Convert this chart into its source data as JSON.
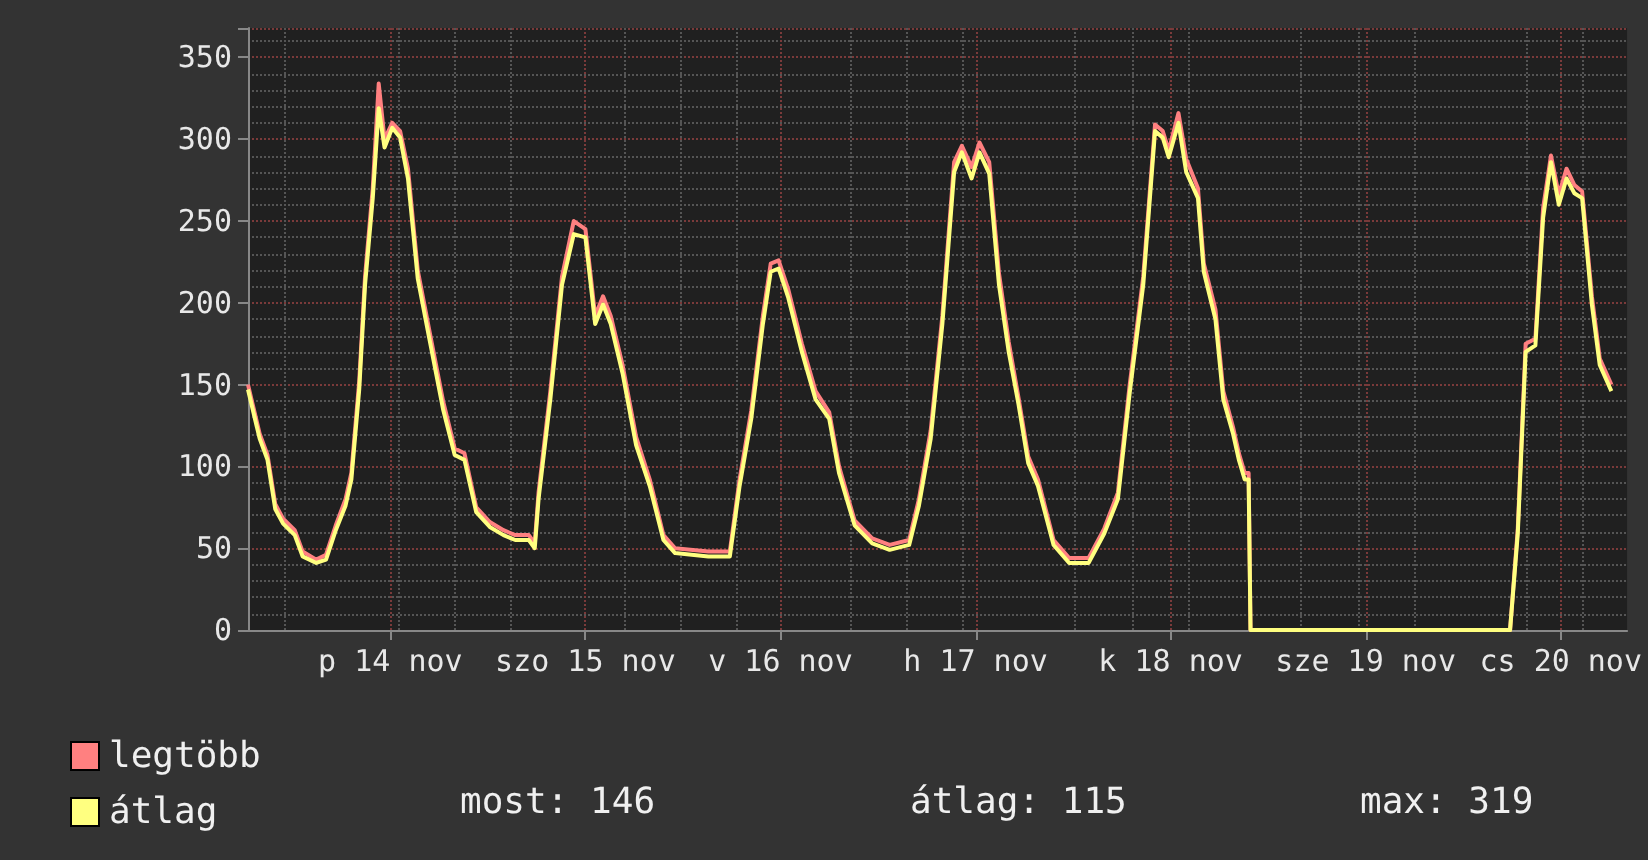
{
  "chart_data": {
    "type": "line",
    "x": [
      "--11-13T18:29",
      "--11-13T19:55",
      "--11-13T20:53",
      "--11-13T21:50",
      "--11-13T22:48",
      "--11-14T00:14",
      "--11-14T01:12",
      "--11-14T02:53",
      "--11-14T04:05",
      "--11-14T05:17",
      "--11-14T06:29",
      "--11-14T07:12",
      "--11-14T08:10",
      "--11-14T08:53",
      "--11-14T09:50",
      "--11-14T10:34",
      "--11-14T11:17",
      "--11-14T12:14",
      "--11-14T13:12",
      "--11-14T14:10",
      "--11-14T15:22",
      "--11-14T16:48",
      "--11-14T18:29",
      "--11-14T19:55",
      "--11-14T21:07",
      "--11-14T22:34",
      "--11-15T00:14",
      "--11-15T01:55",
      "--11-15T03:22",
      "--11-15T05:02",
      "--11-15T05:46",
      "--11-15T06:14",
      "--11-15T07:41",
      "--11-15T09:07",
      "--11-15T10:34",
      "--11-15T12:00",
      "--11-15T13:12",
      "--11-15T14:10",
      "--11-15T15:07",
      "--11-15T16:34",
      "--11-15T18:14",
      "--11-15T19:55",
      "--11-15T21:36",
      "--11-15T23:02",
      "--11-16T03:07",
      "--11-16T05:46",
      "--11-16T06:58",
      "--11-16T08:24",
      "--11-16T09:50",
      "--11-16T10:48",
      "--11-16T11:46",
      "--11-16T12:58",
      "--11-16T14:38",
      "--11-16T16:19",
      "--11-16T18:00",
      "--11-16T19:12",
      "--11-16T21:07",
      "--11-16T23:17",
      "--11-17T01:26",
      "--11-17T03:50",
      "--11-17T05:02",
      "--11-17T06:29",
      "--11-17T07:55",
      "--11-17T09:22",
      "--11-17T10:19",
      "--11-17T11:31",
      "--11-17T12:29",
      "--11-17T13:41",
      "--11-17T14:53",
      "--11-17T16:05",
      "--11-17T17:17",
      "--11-17T18:29",
      "--11-17T19:41",
      "--11-17T21:36",
      "--11-17T23:31",
      "--11-18T01:55",
      "--11-18T03:50",
      "--11-18T05:31",
      "--11-18T06:58",
      "--11-18T08:38",
      "--11-18T10:05",
      "--11-18T11:02",
      "--11-18T11:46",
      "--11-18T12:58",
      "--11-18T13:55",
      "--11-18T15:22",
      "--11-18T16:05",
      "--11-18T17:31",
      "--11-18T18:29",
      "--11-18T19:41",
      "--11-18T20:24",
      "--11-18T21:07",
      "--11-18T21:36",
      "--11-18T21:50",
      "--11-20T05:46",
      "--11-20T06:43",
      "--11-20T07:41",
      "--11-20T08:53",
      "--11-20T09:50",
      "--11-20T10:48",
      "--11-20T11:46",
      "--11-20T12:43",
      "--11-20T13:41",
      "--11-20T14:38",
      "--11-20T15:50",
      "--11-20T16:48",
      "--11-20T18:14"
    ],
    "series": [
      {
        "name": "legtöbb",
        "color": "#ff8080",
        "values": [
          150,
          120,
          107,
          77,
          68,
          61,
          48,
          43,
          46,
          64,
          80,
          96,
          152,
          216,
          270,
          334,
          300,
          310,
          305,
          282,
          220,
          183,
          140,
          111,
          108,
          75,
          66,
          61,
          58,
          58,
          53,
          84,
          146,
          216,
          250,
          245,
          192,
          204,
          192,
          162,
          118,
          92,
          58,
          50,
          48,
          48,
          92,
          134,
          192,
          224,
          226,
          208,
          175,
          146,
          133,
          100,
          67,
          56,
          52,
          55,
          80,
          122,
          192,
          286,
          296,
          283,
          298,
          286,
          218,
          176,
          142,
          106,
          92,
          55,
          44,
          44,
          62,
          84,
          150,
          216,
          309,
          305,
          293,
          316,
          288,
          270,
          224,
          196,
          146,
          124,
          108,
          96,
          96,
          0,
          0,
          62,
          175,
          178,
          258,
          290,
          266,
          282,
          272,
          268,
          204,
          166,
          150
        ]
      },
      {
        "name": "átlag",
        "color": "#ffff80",
        "values": [
          147,
          117,
          104,
          74,
          65,
          58,
          45,
          41,
          43,
          61,
          76,
          92,
          147,
          211,
          264,
          319,
          295,
          307,
          301,
          276,
          215,
          178,
          135,
          107,
          104,
          72,
          63,
          58,
          55,
          55,
          50,
          80,
          141,
          211,
          242,
          240,
          187,
          199,
          187,
          157,
          113,
          88,
          55,
          47,
          45,
          45,
          88,
          129,
          187,
          219,
          221,
          203,
          170,
          141,
          129,
          96,
          64,
          53,
          49,
          52,
          76,
          117,
          187,
          280,
          292,
          276,
          292,
          279,
          211,
          170,
          138,
          102,
          88,
          52,
          41,
          41,
          59,
          80,
          145,
          211,
          305,
          301,
          289,
          310,
          280,
          264,
          219,
          190,
          141,
          120,
          104,
          92,
          92,
          0,
          0,
          59,
          170,
          174,
          252,
          286,
          260,
          276,
          267,
          264,
          199,
          162,
          146
        ]
      }
    ],
    "xlim": [
      "--11-13T18:29",
      "--11-20T20:10"
    ],
    "xticks": [
      {
        "value": "--11-14T12:00",
        "label": "p 14 nov"
      },
      {
        "value": "--11-15T12:00",
        "label": "szo 15 nov"
      },
      {
        "value": "--11-16T12:00",
        "label": "v 16 nov"
      },
      {
        "value": "--11-17T12:00",
        "label": "h 17 nov"
      },
      {
        "value": "--11-18T12:00",
        "label": "k 18 nov"
      },
      {
        "value": "--11-19T12:00",
        "label": "sze 19 nov"
      },
      {
        "value": "--11-20T12:00",
        "label": "cs 20 nov"
      }
    ],
    "ylim": [
      0,
      368
    ],
    "yticks": [
      0,
      50,
      100,
      150,
      200,
      250,
      300,
      350
    ],
    "grid": true,
    "legend": "bottom left",
    "annotations": [
      "most: 146",
      "átlag: 115",
      "max: 319"
    ]
  }
}
